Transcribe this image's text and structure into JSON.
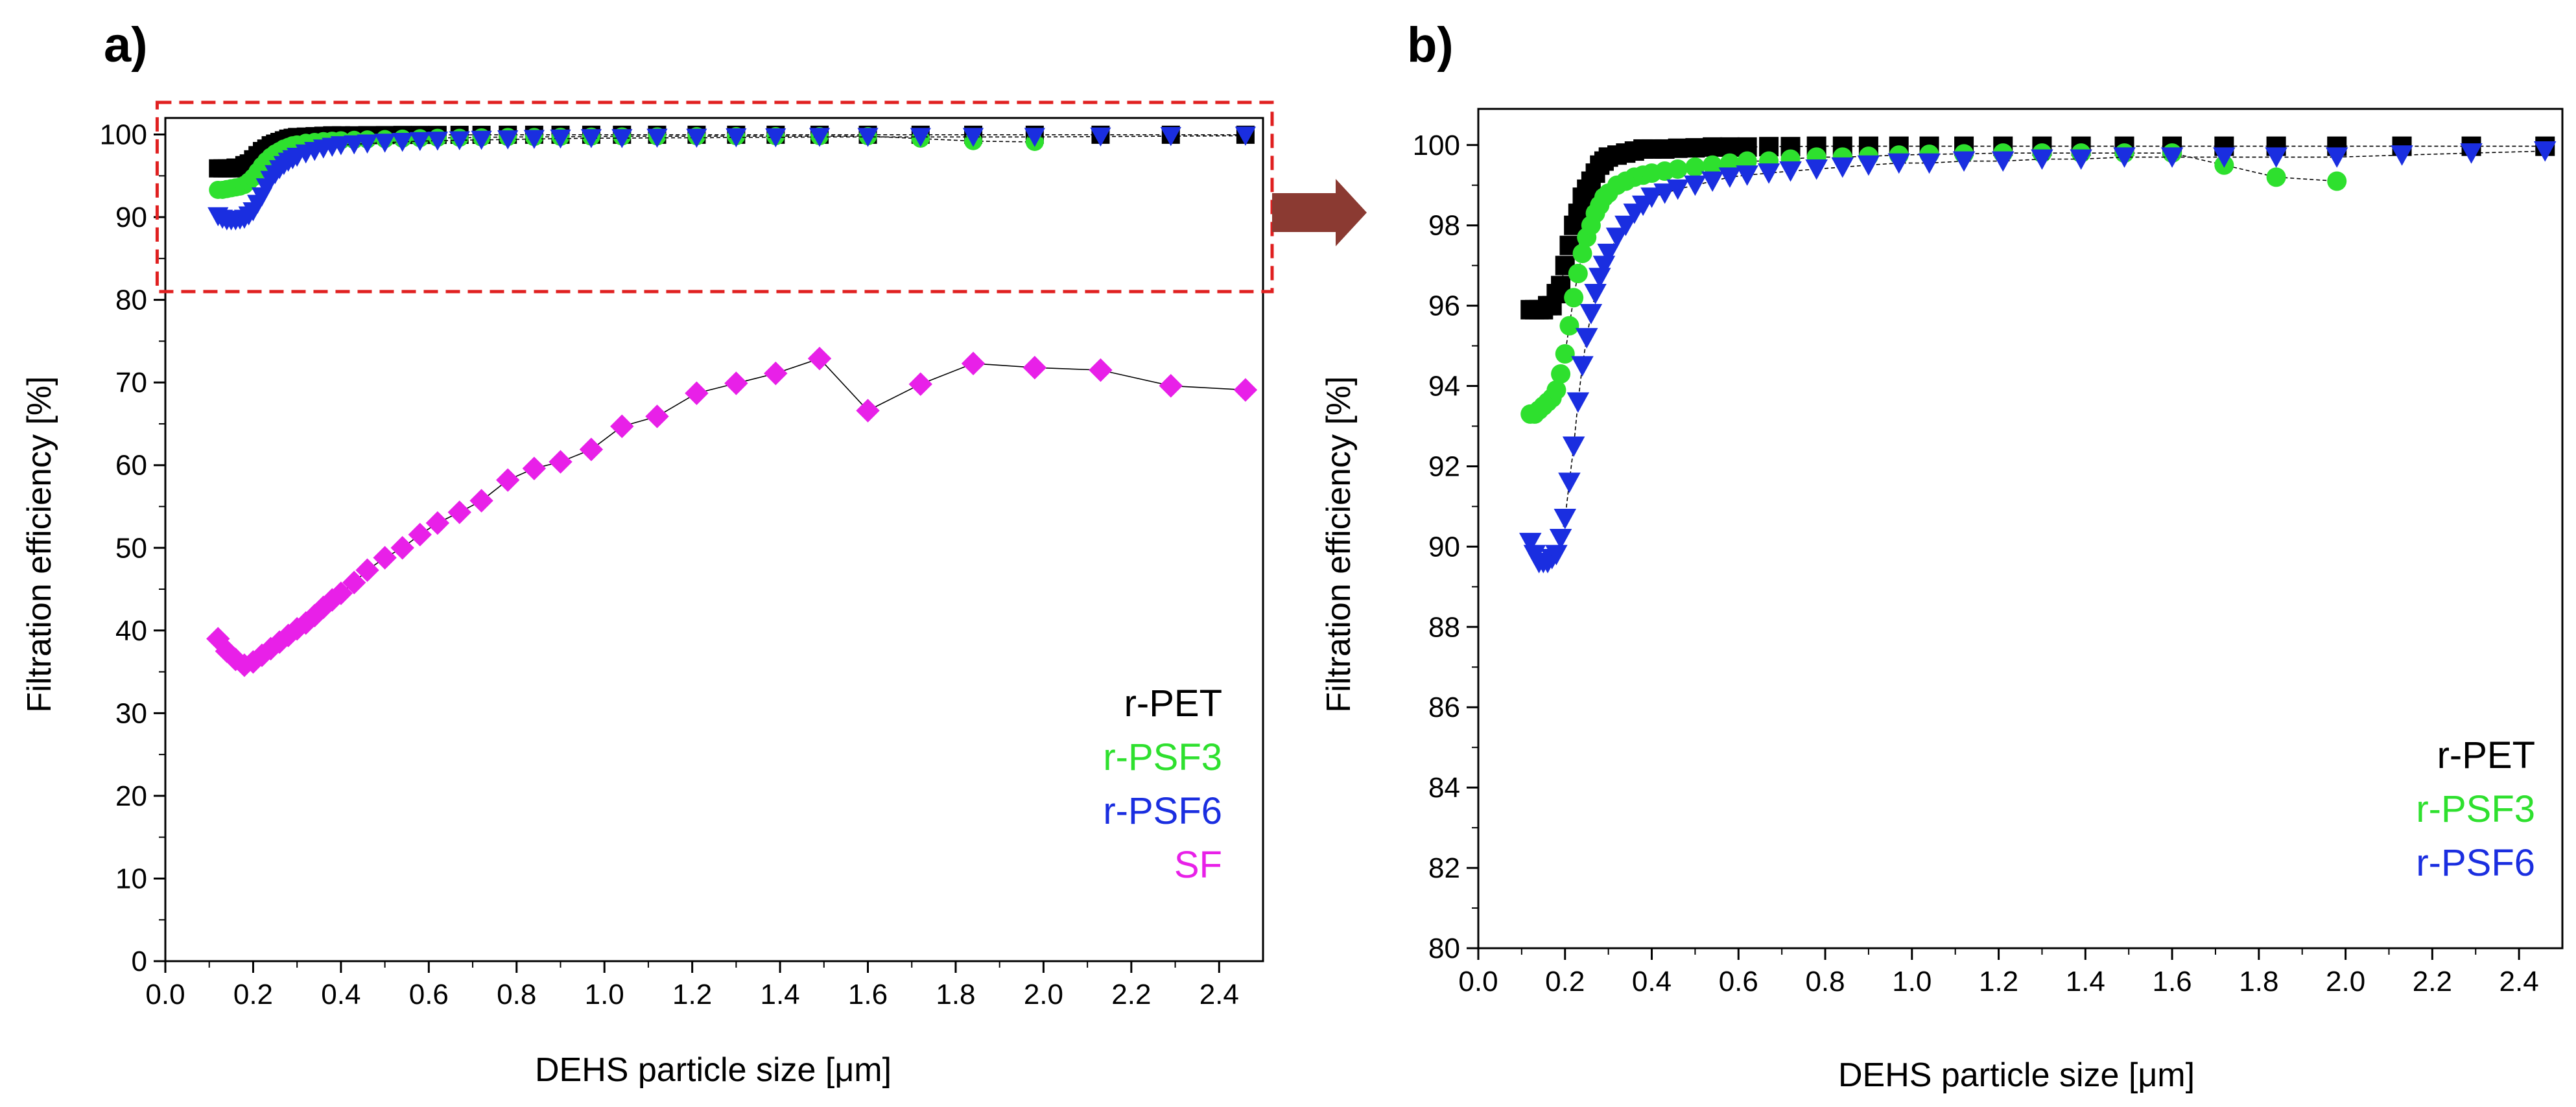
{
  "figure": {
    "background": "#ffffff"
  },
  "chart_data": [
    {
      "panel": "a)",
      "type": "scatter",
      "line_connected": true,
      "title": "",
      "xlabel": "DEHS particle size [μm]",
      "ylabel": "Filtration efficiency [%]",
      "xlim": [
        0.0,
        2.5
      ],
      "ylim": [
        0,
        102
      ],
      "xticks": [
        0.0,
        0.2,
        0.4,
        0.6,
        0.8,
        1.0,
        1.2,
        1.4,
        1.6,
        1.8,
        2.0,
        2.2,
        2.4
      ],
      "xtick_labels": [
        "0.0",
        "0.2",
        "0.4",
        "0.6",
        "0.8",
        "1.0",
        "1.2",
        "1.4",
        "1.6",
        "1.8",
        "2.0",
        "2.2",
        "2.4"
      ],
      "yticks": [
        0,
        10,
        20,
        30,
        40,
        50,
        60,
        70,
        80,
        90,
        100
      ],
      "ytick_labels": [
        "0",
        "10",
        "20",
        "30",
        "40",
        "50",
        "60",
        "70",
        "80",
        "90",
        "100"
      ],
      "legend_position": "bottom-right",
      "annotation": "dashed red rectangle highlighting the 80–100 % region, with arrow pointing to panel b)",
      "highlight_box": {
        "x": [
          0.07,
          2.5
        ],
        "y": [
          81,
          102
        ],
        "color": "#e02020"
      },
      "arrow_color": "#8b3a32",
      "series": [
        {
          "name": "r-PET",
          "color": "#000000",
          "marker": "square",
          "x": [
            0.12,
            0.13,
            0.14,
            0.15,
            0.16,
            0.17,
            0.18,
            0.19,
            0.2,
            0.21,
            0.22,
            0.23,
            0.24,
            0.25,
            0.26,
            0.27,
            0.28,
            0.29,
            0.3,
            0.32,
            0.34,
            0.36,
            0.38,
            0.4,
            0.43,
            0.46,
            0.5,
            0.54,
            0.58,
            0.62,
            0.67,
            0.72,
            0.78,
            0.84,
            0.9,
            0.97,
            1.04,
            1.12,
            1.21,
            1.3,
            1.39,
            1.49,
            1.6,
            1.72,
            1.84,
            1.98,
            2.13,
            2.29,
            2.46
          ],
          "y": [
            95.9,
            95.9,
            95.9,
            95.9,
            96.0,
            96.0,
            96.3,
            96.5,
            97.0,
            97.5,
            98.0,
            98.3,
            98.7,
            98.9,
            99.1,
            99.3,
            99.5,
            99.6,
            99.7,
            99.75,
            99.8,
            99.85,
            99.9,
            99.9,
            99.9,
            99.92,
            99.93,
            99.95,
            99.95,
            99.95,
            99.96,
            99.96,
            99.97,
            99.97,
            99.97,
            99.97,
            99.97,
            99.97,
            99.97,
            99.97,
            99.97,
            99.97,
            99.97,
            99.97,
            99.97,
            99.97,
            99.97,
            99.97,
            99.97
          ]
        },
        {
          "name": "r-PSF3",
          "color": "#2ee02e",
          "marker": "circle",
          "x": [
            0.12,
            0.13,
            0.14,
            0.15,
            0.16,
            0.17,
            0.18,
            0.19,
            0.2,
            0.21,
            0.22,
            0.23,
            0.24,
            0.25,
            0.26,
            0.27,
            0.28,
            0.29,
            0.3,
            0.32,
            0.34,
            0.36,
            0.38,
            0.4,
            0.43,
            0.46,
            0.5,
            0.54,
            0.58,
            0.62,
            0.67,
            0.72,
            0.78,
            0.84,
            0.9,
            0.97,
            1.04,
            1.12,
            1.21,
            1.3,
            1.39,
            1.49,
            1.6,
            1.72,
            1.84,
            1.98
          ],
          "y": [
            93.3,
            93.3,
            93.4,
            93.5,
            93.6,
            93.7,
            93.9,
            94.3,
            94.8,
            95.5,
            96.2,
            96.8,
            97.3,
            97.7,
            98.0,
            98.3,
            98.5,
            98.7,
            98.8,
            99.0,
            99.1,
            99.2,
            99.25,
            99.3,
            99.35,
            99.4,
            99.45,
            99.5,
            99.55,
            99.6,
            99.6,
            99.65,
            99.7,
            99.7,
            99.72,
            99.75,
            99.77,
            99.78,
            99.8,
            99.8,
            99.8,
            99.8,
            99.8,
            99.5,
            99.2,
            99.1
          ]
        },
        {
          "name": "r-PSF6",
          "color": "#1a2ee0",
          "marker": "triangle-down",
          "x": [
            0.12,
            0.13,
            0.14,
            0.15,
            0.16,
            0.17,
            0.18,
            0.19,
            0.2,
            0.21,
            0.22,
            0.23,
            0.24,
            0.25,
            0.26,
            0.27,
            0.28,
            0.29,
            0.3,
            0.32,
            0.34,
            0.36,
            0.38,
            0.4,
            0.43,
            0.46,
            0.5,
            0.54,
            0.58,
            0.62,
            0.67,
            0.72,
            0.78,
            0.84,
            0.9,
            0.97,
            1.04,
            1.12,
            1.21,
            1.3,
            1.39,
            1.49,
            1.6,
            1.72,
            1.84,
            1.98,
            2.13,
            2.29,
            2.46
          ],
          "y": [
            90.1,
            89.8,
            89.6,
            89.6,
            89.6,
            89.7,
            89.8,
            90.2,
            90.7,
            91.6,
            92.5,
            93.6,
            94.5,
            95.2,
            95.8,
            96.3,
            96.7,
            97.0,
            97.3,
            97.7,
            98.0,
            98.3,
            98.5,
            98.7,
            98.8,
            98.9,
            99.0,
            99.1,
            99.2,
            99.25,
            99.3,
            99.35,
            99.4,
            99.45,
            99.5,
            99.55,
            99.55,
            99.6,
            99.6,
            99.65,
            99.65,
            99.7,
            99.7,
            99.7,
            99.7,
            99.7,
            99.75,
            99.8,
            99.85
          ]
        },
        {
          "name": "SF",
          "color": "#e820e8",
          "marker": "diamond",
          "x": [
            0.12,
            0.14,
            0.16,
            0.18,
            0.2,
            0.22,
            0.24,
            0.26,
            0.28,
            0.3,
            0.32,
            0.34,
            0.36,
            0.38,
            0.4,
            0.43,
            0.46,
            0.5,
            0.54,
            0.58,
            0.62,
            0.67,
            0.72,
            0.78,
            0.84,
            0.9,
            0.97,
            1.04,
            1.12,
            1.21,
            1.3,
            1.39,
            1.49,
            1.6,
            1.72,
            1.84,
            1.98,
            2.13,
            2.29,
            2.46
          ],
          "y": [
            39.0,
            37.5,
            36.5,
            35.8,
            36.2,
            37.0,
            37.8,
            38.6,
            39.4,
            40.2,
            40.9,
            41.8,
            42.8,
            43.7,
            44.5,
            45.8,
            47.3,
            48.8,
            50.0,
            51.6,
            53.0,
            54.3,
            55.7,
            58.2,
            59.6,
            60.4,
            61.9,
            64.7,
            65.9,
            68.7,
            69.9,
            71.1,
            72.9,
            66.6,
            69.8,
            72.3,
            71.8,
            71.5,
            69.6,
            69.1
          ]
        }
      ]
    },
    {
      "panel": "b)",
      "type": "scatter",
      "line_connected": true,
      "title": "",
      "xlabel": "DEHS particle size [μm]",
      "ylabel": "Filtration efficiency [%]",
      "xlim": [
        0.0,
        2.5
      ],
      "ylim": [
        80,
        100.9
      ],
      "xticks": [
        0.0,
        0.2,
        0.4,
        0.6,
        0.8,
        1.0,
        1.2,
        1.4,
        1.6,
        1.8,
        2.0,
        2.2,
        2.4
      ],
      "xtick_labels": [
        "0.0",
        "0.2",
        "0.4",
        "0.6",
        "0.8",
        "1.0",
        "1.2",
        "1.4",
        "1.6",
        "1.8",
        "2.0",
        "2.2",
        "2.4"
      ],
      "yticks": [
        80,
        82,
        84,
        86,
        88,
        90,
        92,
        94,
        96,
        98,
        100
      ],
      "ytick_labels": [
        "80",
        "82",
        "84",
        "86",
        "88",
        "90",
        "92",
        "94",
        "96",
        "98",
        "100"
      ],
      "legend_position": "bottom-right",
      "series": [
        {
          "name": "r-PET",
          "color": "#000000",
          "marker": "square",
          "x": [
            0.12,
            0.13,
            0.14,
            0.15,
            0.16,
            0.17,
            0.18,
            0.19,
            0.2,
            0.21,
            0.22,
            0.23,
            0.24,
            0.25,
            0.26,
            0.27,
            0.28,
            0.29,
            0.3,
            0.32,
            0.34,
            0.36,
            0.38,
            0.4,
            0.43,
            0.46,
            0.5,
            0.54,
            0.58,
            0.62,
            0.67,
            0.72,
            0.78,
            0.84,
            0.9,
            0.97,
            1.04,
            1.12,
            1.21,
            1.3,
            1.39,
            1.49,
            1.6,
            1.72,
            1.84,
            1.98,
            2.13,
            2.29,
            2.46
          ],
          "y": [
            95.9,
            95.9,
            95.9,
            95.9,
            96.0,
            96.0,
            96.3,
            96.5,
            97.0,
            97.5,
            98.0,
            98.3,
            98.7,
            98.9,
            99.1,
            99.3,
            99.5,
            99.6,
            99.7,
            99.75,
            99.8,
            99.85,
            99.9,
            99.9,
            99.9,
            99.92,
            99.93,
            99.95,
            99.95,
            99.95,
            99.96,
            99.96,
            99.97,
            99.97,
            99.97,
            99.97,
            99.97,
            99.97,
            99.97,
            99.97,
            99.97,
            99.97,
            99.97,
            99.97,
            99.97,
            99.97,
            99.97,
            99.97,
            99.97
          ]
        },
        {
          "name": "r-PSF3",
          "color": "#2ee02e",
          "marker": "circle",
          "x": [
            0.12,
            0.13,
            0.14,
            0.15,
            0.16,
            0.17,
            0.18,
            0.19,
            0.2,
            0.21,
            0.22,
            0.23,
            0.24,
            0.25,
            0.26,
            0.27,
            0.28,
            0.29,
            0.3,
            0.32,
            0.34,
            0.36,
            0.38,
            0.4,
            0.43,
            0.46,
            0.5,
            0.54,
            0.58,
            0.62,
            0.67,
            0.72,
            0.78,
            0.84,
            0.9,
            0.97,
            1.04,
            1.12,
            1.21,
            1.3,
            1.39,
            1.49,
            1.6,
            1.72,
            1.84,
            1.98
          ],
          "y": [
            93.3,
            93.3,
            93.4,
            93.5,
            93.6,
            93.7,
            93.9,
            94.3,
            94.8,
            95.5,
            96.2,
            96.8,
            97.3,
            97.7,
            98.0,
            98.3,
            98.5,
            98.7,
            98.8,
            99.0,
            99.1,
            99.2,
            99.25,
            99.3,
            99.35,
            99.4,
            99.45,
            99.5,
            99.55,
            99.6,
            99.6,
            99.65,
            99.7,
            99.7,
            99.72,
            99.75,
            99.77,
            99.78,
            99.8,
            99.8,
            99.8,
            99.8,
            99.8,
            99.5,
            99.2,
            99.1
          ]
        },
        {
          "name": "r-PSF6",
          "color": "#1a2ee0",
          "marker": "triangle-down",
          "x": [
            0.12,
            0.13,
            0.14,
            0.15,
            0.16,
            0.17,
            0.18,
            0.19,
            0.2,
            0.21,
            0.22,
            0.23,
            0.24,
            0.25,
            0.26,
            0.27,
            0.28,
            0.29,
            0.3,
            0.32,
            0.34,
            0.36,
            0.38,
            0.4,
            0.43,
            0.46,
            0.5,
            0.54,
            0.58,
            0.62,
            0.67,
            0.72,
            0.78,
            0.84,
            0.9,
            0.97,
            1.04,
            1.12,
            1.21,
            1.3,
            1.39,
            1.49,
            1.6,
            1.72,
            1.84,
            1.98,
            2.13,
            2.29,
            2.46
          ],
          "y": [
            90.1,
            89.8,
            89.6,
            89.6,
            89.6,
            89.7,
            89.8,
            90.2,
            90.7,
            91.6,
            92.5,
            93.6,
            94.5,
            95.2,
            95.8,
            96.3,
            96.7,
            97.0,
            97.3,
            97.7,
            98.0,
            98.3,
            98.5,
            98.7,
            98.8,
            98.9,
            99.0,
            99.1,
            99.2,
            99.25,
            99.3,
            99.35,
            99.4,
            99.45,
            99.5,
            99.55,
            99.55,
            99.6,
            99.6,
            99.65,
            99.65,
            99.7,
            99.7,
            99.7,
            99.7,
            99.7,
            99.75,
            99.8,
            99.85
          ]
        }
      ]
    }
  ]
}
